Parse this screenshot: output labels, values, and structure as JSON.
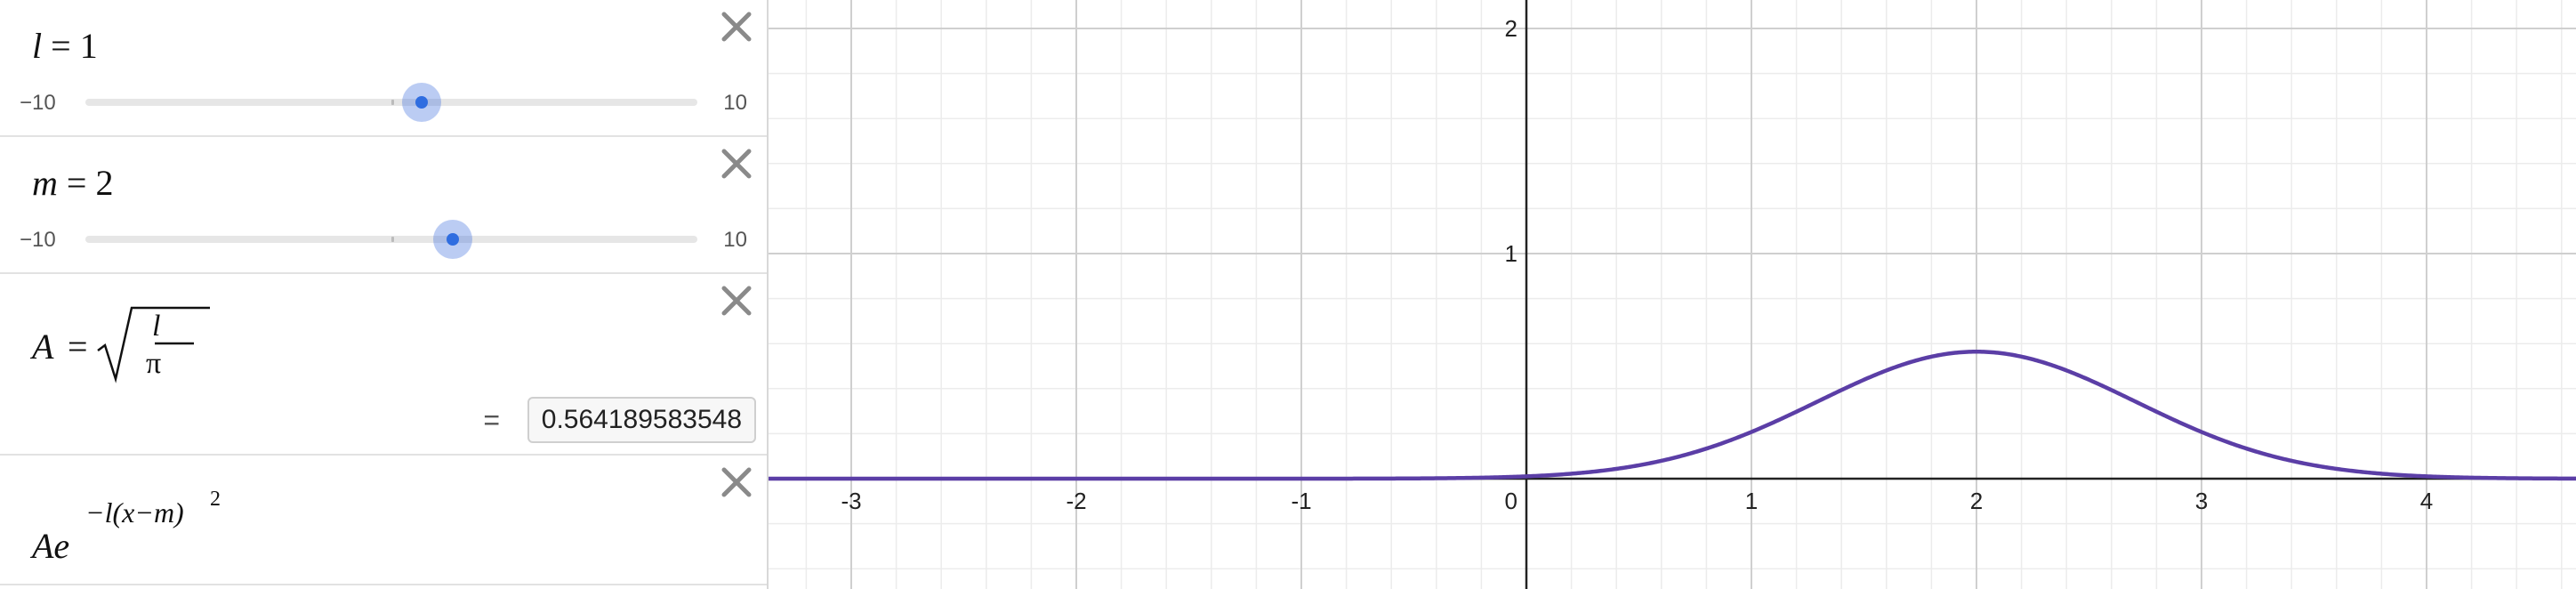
{
  "expressions": [
    {
      "type": "slider",
      "variable": "l",
      "equals": "=",
      "value": "1",
      "slider": {
        "min_label": "−10",
        "max_label": "10",
        "min": -10,
        "max": 10,
        "current": 1
      }
    },
    {
      "type": "slider",
      "variable": "m",
      "equals": "=",
      "value": "2",
      "slider": {
        "min_label": "−10",
        "max_label": "10",
        "min": -10,
        "max": 10,
        "current": 2
      }
    },
    {
      "type": "definition",
      "lhs": "A",
      "equals": "=",
      "numerator": "l",
      "denominator": "π",
      "result_equals": "=",
      "result": "0.564189583548"
    },
    {
      "type": "function",
      "base": "Ae",
      "exponent": "−l(x−m)",
      "exponent_power": "2"
    }
  ],
  "graph": {
    "x_tick_labels": [
      "-3",
      "-2",
      "-1",
      "0",
      "1",
      "2",
      "3",
      "4"
    ],
    "y_tick_labels": [
      "1",
      "2"
    ],
    "curve_color": "#5b3ea6",
    "params": {
      "l": 1,
      "m": 2,
      "A": 0.564189583548
    }
  }
}
